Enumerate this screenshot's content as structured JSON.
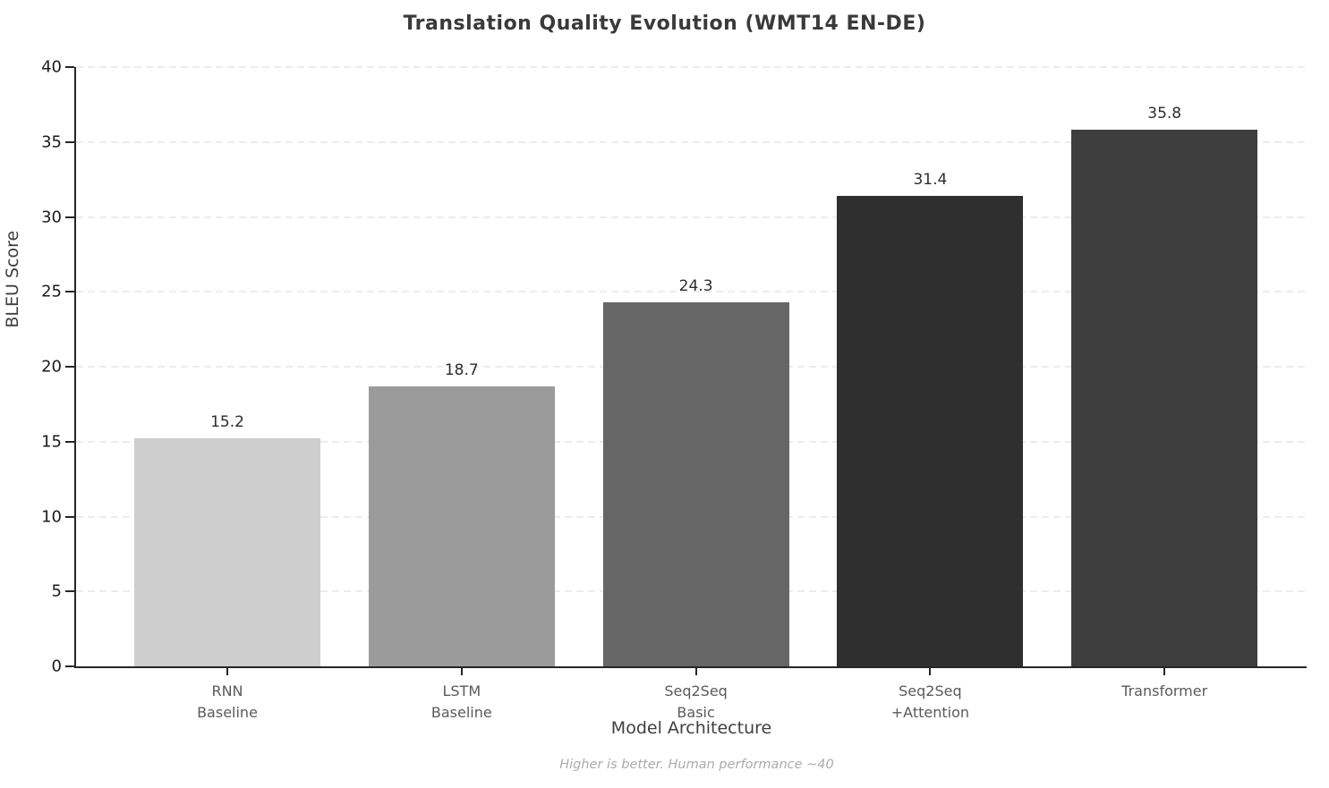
{
  "title": "Translation Quality Evolution (WMT14 EN-DE)",
  "footnote": "Higher is better. Human performance ~40",
  "axes": {
    "xlabel": "Model Architecture",
    "ylabel": "BLEU Score"
  },
  "colors": {
    "title_text": "#3a3a3a",
    "axis_spine": "#262626",
    "gridline": "#ececec",
    "ytick_text": "#1c1c1c",
    "xtick_text": "#5a5a5a",
    "value_label_text": "#2d2d2d",
    "footnote_text": "#ababab",
    "background": "#ffffff"
  },
  "chart_data": {
    "type": "bar",
    "title": "Translation Quality Evolution (WMT14 EN-DE)",
    "xlabel": "Model Architecture",
    "ylabel": "BLEU Score",
    "categories": [
      "RNN\nBaseline",
      "LSTM\nBaseline",
      "Seq2Seq\nBasic",
      "Seq2Seq\n+Attention",
      "Transformer"
    ],
    "values": [
      15.2,
      18.7,
      24.3,
      31.4,
      35.8
    ],
    "value_labels": [
      "15.2",
      "18.7",
      "24.3",
      "31.4",
      "35.8"
    ],
    "bar_colors": [
      "#cecece",
      "#9b9b9b",
      "#666666",
      "#2f2f2f",
      "#3e3e3e"
    ],
    "ylim": [
      0,
      40
    ],
    "yticks": [
      0,
      5,
      10,
      15,
      20,
      25,
      30,
      35,
      40
    ],
    "grid": "horizontal-dashed",
    "legend": "none",
    "annotation": "Higher is better. Human performance ~40"
  }
}
